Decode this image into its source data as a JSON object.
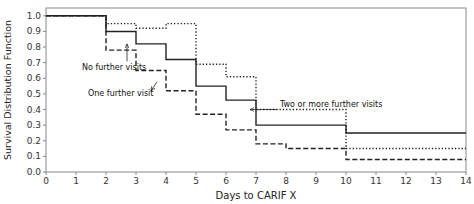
{
  "chart_data": {
    "type": "step",
    "xlabel": "Days to CARIF X",
    "ylabel": "Survival Distribution Function",
    "xlim": [
      0,
      14
    ],
    "ylim": [
      0.0,
      1.05
    ],
    "xticks": [
      0,
      1,
      2,
      3,
      4,
      5,
      6,
      7,
      8,
      9,
      10,
      11,
      12,
      13,
      14
    ],
    "yticks": [
      {
        "value": 0.0,
        "label": "0.0"
      },
      0.1,
      0.2,
      0.3,
      0.4,
      0.5,
      0.6,
      0.7,
      0.8,
      0.9,
      {
        "value": 1.0,
        "label": "1.0"
      }
    ],
    "grid": false,
    "series": [
      {
        "color": "#222222",
        "line_style": "solid",
        "x": [
          0,
          1,
          2,
          3,
          4,
          5,
          6,
          7,
          10,
          14
        ],
        "values": [
          1.0,
          1.0,
          0.9,
          0.82,
          0.72,
          0.55,
          0.46,
          0.3,
          0.25,
          0.25
        ]
      },
      {
        "color": "#222222",
        "line_style": "dashed",
        "x": [
          0,
          1,
          2,
          3,
          4,
          5,
          6,
          7,
          8,
          10,
          14
        ],
        "values": [
          1.0,
          1.0,
          0.78,
          0.65,
          0.52,
          0.37,
          0.27,
          0.18,
          0.15,
          0.08,
          0.08
        ]
      },
      {
        "color": "#222222",
        "line_style": "dotted",
        "x": [
          0,
          1,
          2,
          3,
          4,
          5,
          6,
          7,
          10,
          14
        ],
        "values": [
          1.0,
          1.0,
          0.95,
          0.92,
          0.95,
          0.69,
          0.61,
          0.4,
          0.15,
          0.15
        ]
      }
    ],
    "annotations": [
      {
        "text": "No further visits",
        "x": 2.7,
        "y": 0.82,
        "text_x": 1.2,
        "text_y": 0.67
      },
      {
        "text": "One further visit",
        "x": 3.5,
        "y": 0.52,
        "text_x": 1.4,
        "text_y": 0.5
      },
      {
        "text": "Two or more further visits",
        "x": 6.8,
        "y": 0.4,
        "text_x": 7.8,
        "text_y": 0.43
      }
    ]
  }
}
